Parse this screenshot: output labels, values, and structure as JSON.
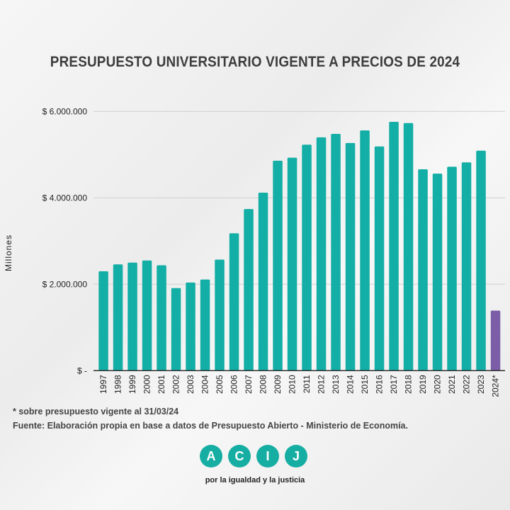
{
  "chart_data": {
    "type": "bar",
    "title": "PRESUPUESTO UNIVERSITARIO VIGENTE A PRECIOS DE  2024",
    "xlabel": "",
    "ylabel": "Millones",
    "ylim": [
      0,
      6000000
    ],
    "yticks": [
      0,
      2000000,
      4000000,
      6000000
    ],
    "ytick_labels": [
      "$ -",
      "$ 2.000.000",
      "$ 4.000.000",
      "$ 6.000.000"
    ],
    "grid": true,
    "categories": [
      "1997",
      "1998",
      "1999",
      "2000",
      "2001",
      "2002",
      "2003",
      "2004",
      "2005",
      "2006",
      "2007",
      "2008",
      "2009",
      "2010",
      "2011",
      "2012",
      "2013",
      "2014",
      "2015",
      "2016",
      "2017",
      "2018",
      "2019",
      "2020",
      "2021",
      "2022",
      "2023",
      "2024*"
    ],
    "values": [
      2300000,
      2460000,
      2500000,
      2550000,
      2440000,
      1910000,
      2040000,
      2110000,
      2570000,
      3180000,
      3740000,
      4120000,
      4860000,
      4930000,
      5230000,
      5400000,
      5480000,
      5270000,
      5560000,
      5190000,
      5760000,
      5730000,
      4660000,
      4560000,
      4720000,
      4820000,
      5090000,
      1390000
    ],
    "colors": {
      "default": "#13aea5",
      "highlight": "#7b5ea7"
    },
    "highlight_category": "2024*"
  },
  "notes": {
    "footnote": "* sobre presupuesto vigente al 31/03/24",
    "source": "Fuente: Elaboración propia en base a datos de Presupuesto Abierto - Ministerio de Economía."
  },
  "logo": {
    "letters": [
      "A",
      "C",
      "I",
      "J"
    ],
    "tagline": "por la igualdad y la justicia",
    "color": "#16aea3"
  }
}
